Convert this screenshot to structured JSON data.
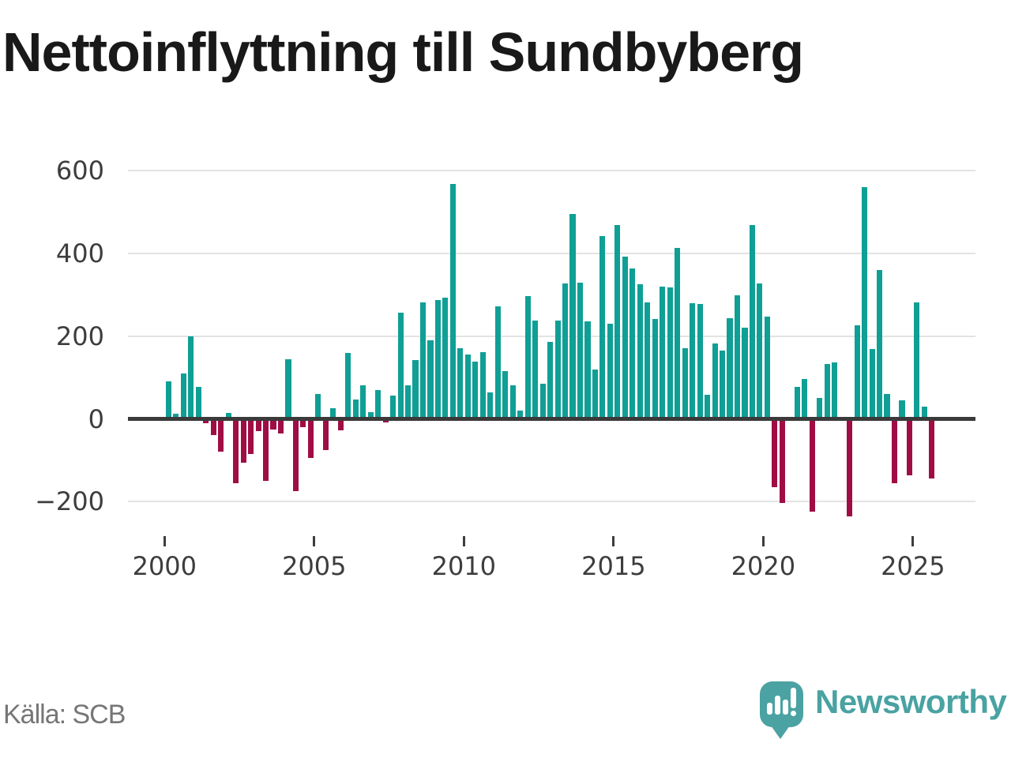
{
  "title": "Nettoinflyttning till Sundbyberg",
  "source": "Källa: SCB",
  "logo": {
    "text": "Newsworthy",
    "icon": "speech-bubble-bar-chart",
    "color": "#4aa2a2"
  },
  "chart_data": {
    "type": "bar",
    "title": "Nettoinflyttning till Sundbyberg",
    "frequency": "quarterly",
    "start_period": "2000Q1",
    "end_period": "2025Q3",
    "x_tick_labels": [
      "2000",
      "2005",
      "2010",
      "2015",
      "2020",
      "2025"
    ],
    "y_ticks": [
      600,
      400,
      200,
      0,
      -200
    ],
    "y_tick_labels": [
      "600",
      "400",
      "200",
      "0",
      "−200"
    ],
    "ylim": [
      -280,
      620
    ],
    "grid": "horizontal",
    "legend": "none",
    "positive_color": "#0f9f95",
    "negative_color": "#a00d45",
    "values": [
      90,
      13,
      110,
      200,
      78,
      -10,
      -40,
      -80,
      15,
      -155,
      -105,
      -85,
      -30,
      -150,
      -25,
      -35,
      145,
      -175,
      -20,
      -95,
      60,
      -75,
      25,
      -27,
      160,
      46,
      82,
      16,
      70,
      -8,
      57,
      257,
      82,
      142,
      282,
      189,
      288,
      293,
      568,
      170,
      156,
      138,
      162,
      64,
      272,
      116,
      82,
      20,
      297,
      238,
      85,
      187,
      238,
      328,
      495,
      330,
      236,
      120,
      442,
      230,
      469,
      393,
      363,
      326,
      281,
      242,
      320,
      317,
      414,
      170,
      280,
      278,
      59,
      183,
      166,
      244,
      298,
      220,
      469,
      327,
      248,
      -165,
      -203,
      0,
      77,
      96,
      -225,
      51,
      133,
      136,
      0,
      -235,
      226,
      561,
      168,
      359,
      60,
      -155,
      45,
      -136,
      281,
      30,
      -144
    ]
  }
}
